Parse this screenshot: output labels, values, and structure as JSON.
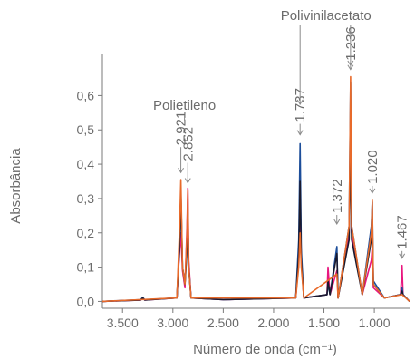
{
  "chart_data": {
    "type": "line",
    "title": "",
    "xlabel": "Número de onda (cm⁻¹)",
    "ylabel": "Absorbância",
    "x_reversed": true,
    "xlim": [
      3700,
      650
    ],
    "ylim": [
      -0.02,
      0.72
    ],
    "xticks": [
      {
        "value": 3500,
        "label": "3.500"
      },
      {
        "value": 3000,
        "label": "3.000"
      },
      {
        "value": 2500,
        "label": "2.500"
      },
      {
        "value": 2000,
        "label": "2.000"
      },
      {
        "value": 1500,
        "label": "1.500"
      },
      {
        "value": 1000,
        "label": "1.000"
      }
    ],
    "yticks": [
      {
        "value": 0.0,
        "label": "0,0"
      },
      {
        "value": 0.1,
        "label": "0,1"
      },
      {
        "value": 0.2,
        "label": "0,2"
      },
      {
        "value": 0.3,
        "label": "0,3"
      },
      {
        "value": 0.4,
        "label": "0,4"
      },
      {
        "value": 0.5,
        "label": "0,5"
      },
      {
        "value": 0.6,
        "label": "0,6"
      }
    ],
    "grid": false,
    "legend": "none",
    "series": [
      {
        "color": "#e8177f",
        "points": [
          [
            3700,
            0
          ],
          [
            3320,
            0.004
          ],
          [
            3300,
            0.01
          ],
          [
            3280,
            0.004
          ],
          [
            2960,
            0.01
          ],
          [
            2935,
            0.14
          ],
          [
            2921,
            0.2
          ],
          [
            2905,
            0.09
          ],
          [
            2880,
            0.04
          ],
          [
            2860,
            0.22
          ],
          [
            2852,
            0.33
          ],
          [
            2843,
            0.12
          ],
          [
            2820,
            0.01
          ],
          [
            2500,
            0.005
          ],
          [
            1780,
            0.01
          ],
          [
            1750,
            0.12
          ],
          [
            1737,
            0.32
          ],
          [
            1725,
            0.12
          ],
          [
            1700,
            0.01
          ],
          [
            1470,
            0.02
          ],
          [
            1460,
            0.1
          ],
          [
            1440,
            0.02
          ],
          [
            1372,
            0.09
          ],
          [
            1360,
            0.01
          ],
          [
            1250,
            0.2
          ],
          [
            1236,
            0.55
          ],
          [
            1225,
            0.2
          ],
          [
            1120,
            0.02
          ],
          [
            1030,
            0.12
          ],
          [
            1020,
            0.16
          ],
          [
            1010,
            0.04
          ],
          [
            900,
            0.01
          ],
          [
            740,
            0.02
          ],
          [
            725,
            0.105
          ],
          [
            715,
            0.02
          ],
          [
            650,
            0.0
          ]
        ]
      },
      {
        "color": "#1d4e9a",
        "points": [
          [
            3700,
            0
          ],
          [
            3320,
            0.005
          ],
          [
            3300,
            0.012
          ],
          [
            3280,
            0.005
          ],
          [
            2960,
            0.01
          ],
          [
            2935,
            0.16
          ],
          [
            2921,
            0.3
          ],
          [
            2905,
            0.1
          ],
          [
            2880,
            0.05
          ],
          [
            2860,
            0.15
          ],
          [
            2852,
            0.24
          ],
          [
            2843,
            0.1
          ],
          [
            2820,
            0.01
          ],
          [
            2500,
            0.005
          ],
          [
            1780,
            0.01
          ],
          [
            1750,
            0.18
          ],
          [
            1737,
            0.46
          ],
          [
            1725,
            0.15
          ],
          [
            1700,
            0.01
          ],
          [
            1470,
            0.02
          ],
          [
            1460,
            0.05
          ],
          [
            1440,
            0.02
          ],
          [
            1372,
            0.16
          ],
          [
            1360,
            0.01
          ],
          [
            1250,
            0.22
          ],
          [
            1236,
            0.64
          ],
          [
            1225,
            0.22
          ],
          [
            1120,
            0.02
          ],
          [
            1030,
            0.22
          ],
          [
            1020,
            0.29
          ],
          [
            1010,
            0.06
          ],
          [
            900,
            0.01
          ],
          [
            740,
            0.02
          ],
          [
            725,
            0.04
          ],
          [
            715,
            0.02
          ],
          [
            650,
            0.0
          ]
        ]
      },
      {
        "color": "#1a1a2e",
        "points": [
          [
            3700,
            0
          ],
          [
            3320,
            0.004
          ],
          [
            3300,
            0.01
          ],
          [
            3280,
            0.004
          ],
          [
            2960,
            0.01
          ],
          [
            2935,
            0.15
          ],
          [
            2921,
            0.32
          ],
          [
            2905,
            0.1
          ],
          [
            2880,
            0.05
          ],
          [
            2860,
            0.16
          ],
          [
            2852,
            0.26
          ],
          [
            2843,
            0.1
          ],
          [
            2820,
            0.01
          ],
          [
            2500,
            0.005
          ],
          [
            1780,
            0.01
          ],
          [
            1750,
            0.14
          ],
          [
            1737,
            0.35
          ],
          [
            1725,
            0.12
          ],
          [
            1700,
            0.01
          ],
          [
            1470,
            0.02
          ],
          [
            1460,
            0.06
          ],
          [
            1440,
            0.02
          ],
          [
            1372,
            0.14
          ],
          [
            1360,
            0.01
          ],
          [
            1250,
            0.18
          ],
          [
            1236,
            0.45
          ],
          [
            1225,
            0.18
          ],
          [
            1120,
            0.02
          ],
          [
            1030,
            0.18
          ],
          [
            1020,
            0.24
          ],
          [
            1010,
            0.05
          ],
          [
            900,
            0.01
          ],
          [
            740,
            0.02
          ],
          [
            725,
            0.03
          ],
          [
            715,
            0.02
          ],
          [
            650,
            0.0
          ]
        ]
      },
      {
        "color": "#e86a2a",
        "points": [
          [
            3700,
            0
          ],
          [
            2960,
            0.01
          ],
          [
            2935,
            0.2
          ],
          [
            2921,
            0.355
          ],
          [
            2905,
            0.1
          ],
          [
            2880,
            0.05
          ],
          [
            2860,
            0.2
          ],
          [
            2852,
            0.325
          ],
          [
            2843,
            0.1
          ],
          [
            2820,
            0.01
          ],
          [
            1780,
            0.01
          ],
          [
            1750,
            0.1
          ],
          [
            1737,
            0.2
          ],
          [
            1725,
            0.1
          ],
          [
            1700,
            0.01
          ],
          [
            1372,
            0.08
          ],
          [
            1360,
            0.01
          ],
          [
            1250,
            0.22
          ],
          [
            1236,
            0.655
          ],
          [
            1225,
            0.22
          ],
          [
            1120,
            0.02
          ],
          [
            1030,
            0.2
          ],
          [
            1020,
            0.295
          ],
          [
            1010,
            0.05
          ],
          [
            900,
            0.01
          ],
          [
            725,
            0.02
          ],
          [
            650,
            0.0
          ]
        ]
      }
    ],
    "annotations": [
      {
        "label": "2.921",
        "x": 2921,
        "y": 0.36
      },
      {
        "label": "2.852",
        "x": 2852,
        "y": 0.33
      },
      {
        "label": "1.737",
        "x": 1737,
        "y": 0.47
      },
      {
        "label": "1.236",
        "x": 1236,
        "y": 0.66
      },
      {
        "label": "1.372",
        "x": 1372,
        "y": 0.21
      },
      {
        "label": "1.020",
        "x": 1020,
        "y": 0.3
      },
      {
        "label": "1.467",
        "x": 725,
        "y": 0.11
      }
    ],
    "group_labels": [
      {
        "label": "Polietileno"
      },
      {
        "label": "Polivinilacetato"
      }
    ]
  }
}
